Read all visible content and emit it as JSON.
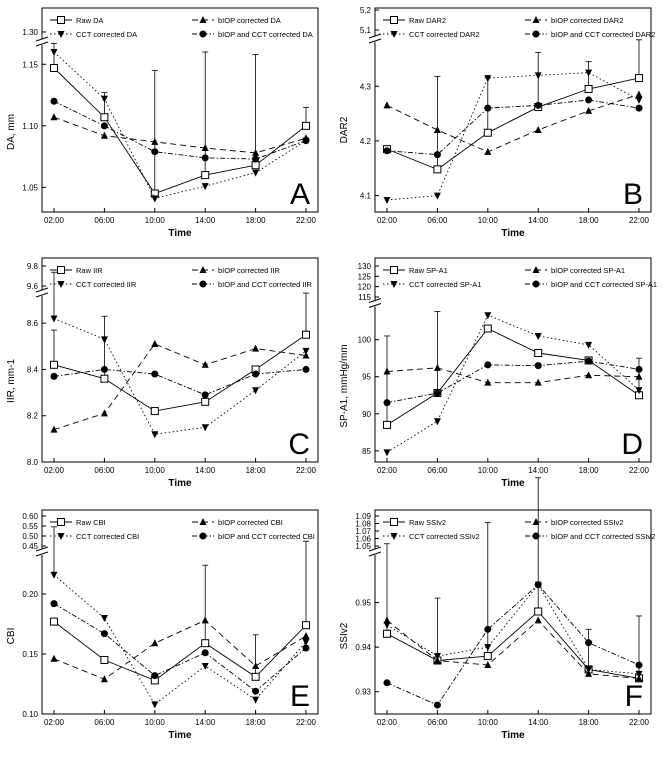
{
  "figure": {
    "x_title": "Time",
    "series_styles": [
      {
        "dash": "",
        "marker": "square-open"
      },
      {
        "dash": "6,4",
        "marker": "triangle-up"
      },
      {
        "dash": "1.5,2.5",
        "marker": "triangle-down"
      },
      {
        "dash": "5,2,1.5,2",
        "marker": "circle"
      }
    ]
  },
  "chart_data": [
    {
      "type": "line",
      "letter": "A",
      "ylabel": "DA, mm",
      "categories": [
        "02:00",
        "06:00",
        "10:00",
        "14:00",
        "18:00",
        "22:00"
      ],
      "yticks": [
        "1.30",
        "1.15",
        "1.10",
        "1.05"
      ],
      "ylim": [
        1.03,
        1.31
      ],
      "series": [
        {
          "name": "Raw DA",
          "values": [
            1.147,
            1.107,
            1.045,
            1.06,
            1.068,
            1.1
          ],
          "err": [
            0.02,
            0.02,
            0.1,
            0.1,
            0.09,
            0.015
          ]
        },
        {
          "name": "bIOP corrected DA",
          "values": [
            1.107,
            1.092,
            1.087,
            1.082,
            1.078,
            1.09
          ],
          "err": [
            0,
            0,
            0,
            0,
            0,
            0
          ]
        },
        {
          "name": "CCT corrected DA",
          "values": [
            1.16,
            1.122,
            1.041,
            1.051,
            1.062,
            1.088
          ],
          "err": [
            0,
            0,
            0,
            0,
            0,
            0
          ]
        },
        {
          "name": "bIOP and CCT corrected DA",
          "values": [
            1.12,
            1.1,
            1.079,
            1.074,
            1.073,
            1.088
          ],
          "err": [
            0,
            0,
            0,
            0,
            0,
            0
          ]
        }
      ]
    },
    {
      "type": "line",
      "letter": "B",
      "ylabel": "DAR2",
      "categories": [
        "02:00",
        "06:00",
        "10:00",
        "14:00",
        "18:00",
        "22:00"
      ],
      "yticks": [
        "5.2",
        "5.1",
        "4.3",
        "4.2",
        "4.1"
      ],
      "ylim": [
        4.07,
        5.2
      ],
      "series": [
        {
          "name": "Raw DAR2",
          "values": [
            4.185,
            4.148,
            4.215,
            4.262,
            4.295,
            4.315
          ],
          "err": [
            0,
            0.17,
            0.1,
            0.1,
            0.05,
            0.07
          ]
        },
        {
          "name": "bIOP corrected DAR2",
          "values": [
            4.265,
            4.22,
            4.18,
            4.22,
            4.255,
            4.285
          ],
          "err": [
            0,
            0,
            0,
            0,
            0,
            0
          ]
        },
        {
          "name": "CCT corrected DAR2",
          "values": [
            4.092,
            4.1,
            4.315,
            4.32,
            4.325,
            4.275
          ],
          "err": [
            0,
            0,
            0,
            0,
            0,
            0
          ]
        },
        {
          "name": "bIOP and CCT corrected DAR2",
          "values": [
            4.182,
            4.175,
            4.26,
            4.265,
            4.275,
            4.26
          ],
          "err": [
            0,
            0,
            0,
            0,
            0,
            0
          ]
        }
      ]
    },
    {
      "type": "line",
      "letter": "C",
      "ylabel": "IIR, mm-1",
      "categories": [
        "02:00",
        "06:00",
        "10:00",
        "14:00",
        "18:00",
        "22:00"
      ],
      "yticks": [
        "9.8",
        "9.6",
        "8.6",
        "8.4",
        "8.2",
        "8.0"
      ],
      "ylim": [
        8.0,
        9.8
      ],
      "series": [
        {
          "name": "Raw IIR",
          "values": [
            8.42,
            8.36,
            8.22,
            8.26,
            8.4,
            8.55
          ],
          "err": [
            0.15,
            0.27,
            0,
            0,
            0,
            0.18
          ]
        },
        {
          "name": "bIOP corrected IIR",
          "values": [
            8.14,
            8.21,
            8.51,
            8.42,
            8.49,
            8.46
          ],
          "err": [
            0,
            0,
            0,
            0,
            0,
            0
          ]
        },
        {
          "name": "CCT corrected IIR",
          "values": [
            8.62,
            8.53,
            8.12,
            8.15,
            8.31,
            8.48
          ],
          "err": [
            0.2,
            0,
            0,
            0,
            0,
            0
          ]
        },
        {
          "name": "bIOP and CCT corrected IIR",
          "values": [
            8.37,
            8.4,
            8.38,
            8.29,
            8.38,
            8.4
          ],
          "err": [
            0,
            0,
            0,
            0,
            0,
            0
          ]
        }
      ]
    },
    {
      "type": "line",
      "letter": "D",
      "ylabel": "SP-A1, mmHg/mm",
      "categories": [
        "02:00",
        "06:00",
        "10:00",
        "14:00",
        "18:00",
        "22:00"
      ],
      "yticks": [
        "130",
        "125",
        "120",
        "115",
        "100",
        "95",
        "90",
        "85"
      ],
      "ylim": [
        83.5,
        130
      ],
      "series": [
        {
          "name": "Raw SP-A1",
          "values": [
            88.5,
            92.8,
            101.5,
            98.2,
            97.2,
            92.5
          ],
          "err": [
            12.0,
            11.0,
            0,
            0,
            0,
            5.0
          ]
        },
        {
          "name": "bIOP corrected SP-A1",
          "values": [
            95.7,
            96.2,
            94.2,
            94.2,
            95.2,
            95.0
          ],
          "err": [
            0,
            0,
            0,
            0,
            0,
            0
          ]
        },
        {
          "name": "CCT corrected SP-A1",
          "values": [
            84.8,
            89.0,
            103.3,
            100.5,
            99.3,
            93.2
          ],
          "err": [
            0,
            0,
            0,
            0,
            0,
            0
          ]
        },
        {
          "name": "bIOP and CCT corrected SP-A1",
          "values": [
            91.5,
            92.8,
            96.6,
            96.5,
            97.1,
            96.0
          ],
          "err": [
            0,
            0,
            0,
            0,
            0,
            0
          ]
        }
      ]
    },
    {
      "type": "line",
      "letter": "E",
      "ylabel": "CBI",
      "categories": [
        "02:00",
        "06:00",
        "10:00",
        "14:00",
        "18:00",
        "22:00"
      ],
      "yticks": [
        "0.60",
        "0.55",
        "0.50",
        "0.45",
        "0.20",
        "0.15",
        "0.10"
      ],
      "ylim": [
        0.1,
        0.6
      ],
      "series": [
        {
          "name": "Raw CBI",
          "values": [
            0.177,
            0.145,
            0.128,
            0.159,
            0.131,
            0.174
          ],
          "err": [
            0,
            0,
            0,
            0.065,
            0.035,
            0.07
          ]
        },
        {
          "name": "bIOP corrected CBI",
          "values": [
            0.146,
            0.129,
            0.159,
            0.178,
            0.14,
            0.165
          ],
          "err": [
            0,
            0,
            0,
            0,
            0,
            0
          ]
        },
        {
          "name": "CCT corrected CBI",
          "values": [
            0.216,
            0.18,
            0.108,
            0.14,
            0.112,
            0.16
          ],
          "err": [
            0.04,
            0,
            0,
            0,
            0,
            0
          ]
        },
        {
          "name": "bIOP and CCT corrected CBI",
          "values": [
            0.192,
            0.167,
            0.132,
            0.151,
            0.119,
            0.155
          ],
          "err": [
            0,
            0,
            0,
            0,
            0,
            0
          ]
        }
      ]
    },
    {
      "type": "line",
      "letter": "F",
      "ylabel": "SSIv2",
      "categories": [
        "02:00",
        "06:00",
        "10:00",
        "14:00",
        "18:00",
        "22:00"
      ],
      "yticks": [
        "1.09",
        "1.08",
        "1.07",
        "1.06",
        "1.05",
        "0.95",
        "0.94",
        "0.93"
      ],
      "ylim": [
        0.925,
        1.09
      ],
      "series": [
        {
          "name": "Raw SSIv2",
          "values": [
            0.943,
            0.937,
            0.938,
            0.948,
            0.935,
            0.933
          ],
          "err": [
            0.11,
            0.014,
            0.03,
            0.03,
            0.009,
            0.014
          ]
        },
        {
          "name": "bIOP corrected SSIv2",
          "values": [
            0.946,
            0.937,
            0.936,
            0.946,
            0.934,
            0.933
          ],
          "err": [
            0,
            0,
            0,
            0,
            0,
            0
          ]
        },
        {
          "name": "CCT corrected SSIv2",
          "values": [
            0.945,
            0.938,
            0.94,
            0.954,
            0.935,
            0.934
          ],
          "err": [
            0,
            0,
            0,
            0,
            0,
            0
          ]
        },
        {
          "name": "bIOP and CCT corrected SSIv2",
          "values": [
            0.932,
            0.927,
            0.944,
            0.954,
            0.941,
            0.936
          ],
          "err": [
            0,
            0,
            0,
            0,
            0,
            0
          ]
        }
      ]
    }
  ]
}
